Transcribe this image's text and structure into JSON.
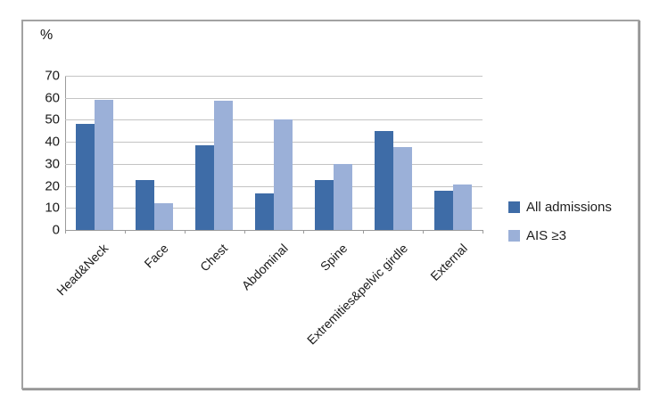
{
  "chart_data": {
    "type": "bar",
    "title": "",
    "ylabel": "%",
    "xlabel": "",
    "ylim": [
      0,
      70
    ],
    "yticks": [
      0,
      10,
      20,
      30,
      40,
      50,
      60,
      70
    ],
    "grid": "horizontal",
    "legend_position": "right",
    "categories": [
      "Head&Neck",
      "Face",
      "Chest",
      "Abdominal",
      "Spine",
      "Extremities&pelvic girdle",
      "External"
    ],
    "series": [
      {
        "name": "All admissions",
        "color": "#3e6ca7",
        "values": [
          48,
          22.5,
          38.5,
          16.5,
          22.5,
          45,
          18
        ]
      },
      {
        "name": "AIS ≥3",
        "color": "#9bb0d8",
        "values": [
          59,
          12,
          58.5,
          50,
          30,
          37.5,
          20.5
        ]
      }
    ]
  },
  "colors": {
    "gridline": "#c4c4c4",
    "axis": "#9b9b9b",
    "frame_border": "#a2a2a2",
    "text": "#1a1a1a",
    "background": "#ffffff"
  }
}
